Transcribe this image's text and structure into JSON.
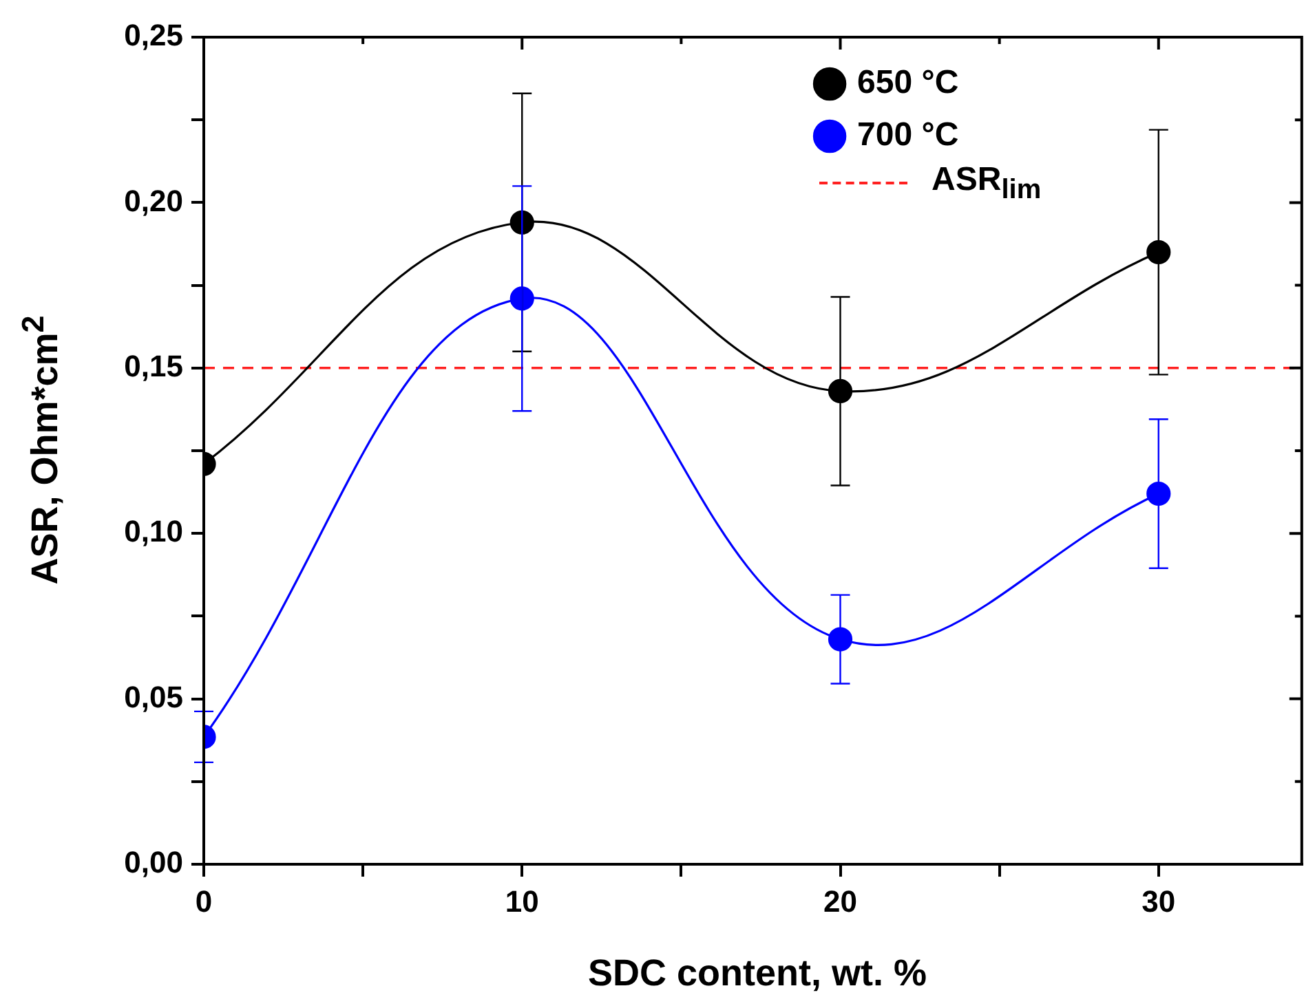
{
  "chart_data": {
    "type": "line",
    "xlabel": "SDC content, wt. %",
    "ylabel": "ASR, Ohm*cm$^{2}$",
    "x": [
      0,
      10,
      20,
      30
    ],
    "series": [
      {
        "name": "650 °C",
        "color": "#000000",
        "values": [
          0.121,
          0.194,
          0.143,
          0.185
        ],
        "errors": [
          null,
          0.039,
          0.0285,
          0.037
        ]
      },
      {
        "name": "700 °C",
        "color": "#0000ff",
        "values": [
          0.0385,
          0.171,
          0.068,
          0.112
        ],
        "errors": [
          0.0077,
          0.034,
          0.0134,
          0.0225
        ]
      }
    ],
    "xlim": [
      0,
      34.5
    ],
    "xticks": [
      0,
      {
        "value": 5,
        "label": null
      },
      10,
      {
        "value": 15,
        "label": null
      },
      20,
      {
        "value": 25,
        "label": null
      },
      30
    ],
    "ylim": [
      0,
      0.25
    ],
    "yticks": [
      {
        "value": 0,
        "label": "0,00"
      },
      {
        "value": 0.025,
        "label": null
      },
      {
        "value": 0.05,
        "label": "0,05"
      },
      {
        "value": 0.075,
        "label": null
      },
      {
        "value": 0.1,
        "label": "0,10"
      },
      {
        "value": 0.125,
        "label": null
      },
      {
        "value": 0.15,
        "label": "0,15"
      },
      {
        "value": 0.175,
        "label": null
      },
      {
        "value": 0.2,
        "label": "0,20"
      },
      {
        "value": 0.225,
        "label": null
      },
      {
        "value": 0.25,
        "label": "0,25"
      }
    ],
    "ref_lines": [
      {
        "axis": "y",
        "value": 0.15,
        "label": "ASR$_{lim}$",
        "color": "#ff2020",
        "line_style": "dashed"
      }
    ],
    "marker": "circle",
    "grid": false,
    "legend": "top right"
  }
}
